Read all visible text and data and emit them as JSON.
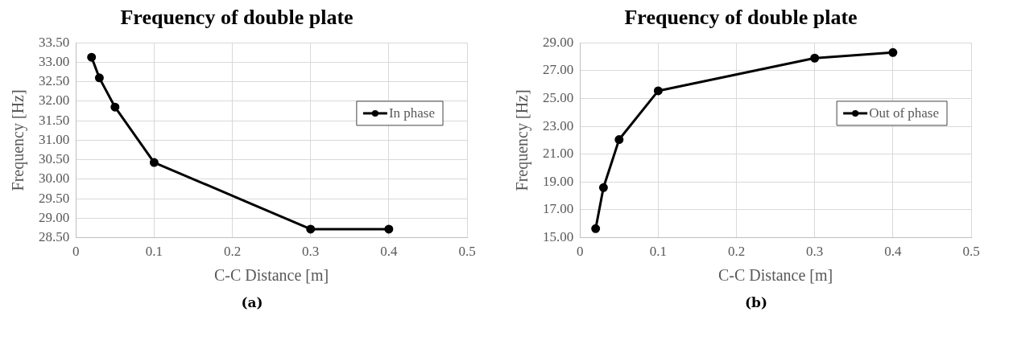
{
  "chart_data": [
    {
      "type": "line",
      "title": "Frequency of double plate",
      "xlabel": "C-C Distance [m]",
      "ylabel": "Frequency [Hz]",
      "x": [
        0.02,
        0.03,
        0.05,
        0.1,
        0.3,
        0.4
      ],
      "series": [
        {
          "name": "In phase",
          "color": "#000000",
          "values": [
            33.13,
            32.6,
            31.85,
            30.43,
            28.72,
            28.72
          ]
        }
      ],
      "xlim": [
        0,
        0.5
      ],
      "xticks": [
        0,
        0.1,
        0.2,
        0.3,
        0.4,
        0.5
      ],
      "ylim": [
        28.5,
        33.5
      ],
      "yticks": [
        {
          "value": 28.5,
          "label": "28.50"
        },
        {
          "value": 29,
          "label": "29.00"
        },
        {
          "value": 29.5,
          "label": "29.50"
        },
        {
          "value": 30,
          "label": "30.00"
        },
        {
          "value": 30.5,
          "label": "30.50"
        },
        {
          "value": 31,
          "label": "31.00"
        },
        {
          "value": 31.5,
          "label": "31.50"
        },
        {
          "value": 32,
          "label": "32.00"
        },
        {
          "value": 32.5,
          "label": "32.50"
        },
        {
          "value": 33,
          "label": "33.00"
        },
        {
          "value": 33.5,
          "label": "33.50"
        }
      ],
      "grid": true,
      "legend": "right",
      "marker": "circle",
      "line_style": "solid",
      "annotations": [
        "(a)"
      ]
    },
    {
      "type": "line",
      "title": "Frequency of double plate",
      "xlabel": "C-C Distance [m]",
      "ylabel": "Frequency [Hz]",
      "x": [
        0.02,
        0.03,
        0.05,
        0.1,
        0.3,
        0.4
      ],
      "series": [
        {
          "name": "Out of phase",
          "color": "#000000",
          "values": [
            15.65,
            18.6,
            22.05,
            25.55,
            27.9,
            28.3
          ]
        }
      ],
      "xlim": [
        0,
        0.5
      ],
      "xticks": [
        0,
        0.1,
        0.2,
        0.3,
        0.4,
        0.5
      ],
      "ylim": [
        15,
        29
      ],
      "yticks": [
        {
          "value": 15,
          "label": "15.00"
        },
        {
          "value": 17,
          "label": "17.00"
        },
        {
          "value": 19,
          "label": "19.00"
        },
        {
          "value": 21,
          "label": "21.00"
        },
        {
          "value": 23,
          "label": "23.00"
        },
        {
          "value": 25,
          "label": "25.00"
        },
        {
          "value": 27,
          "label": "27.00"
        },
        {
          "value": 29,
          "label": "29.00"
        }
      ],
      "grid": true,
      "legend": "right",
      "marker": "circle",
      "line_style": "solid",
      "annotations": [
        "(b)"
      ]
    }
  ]
}
